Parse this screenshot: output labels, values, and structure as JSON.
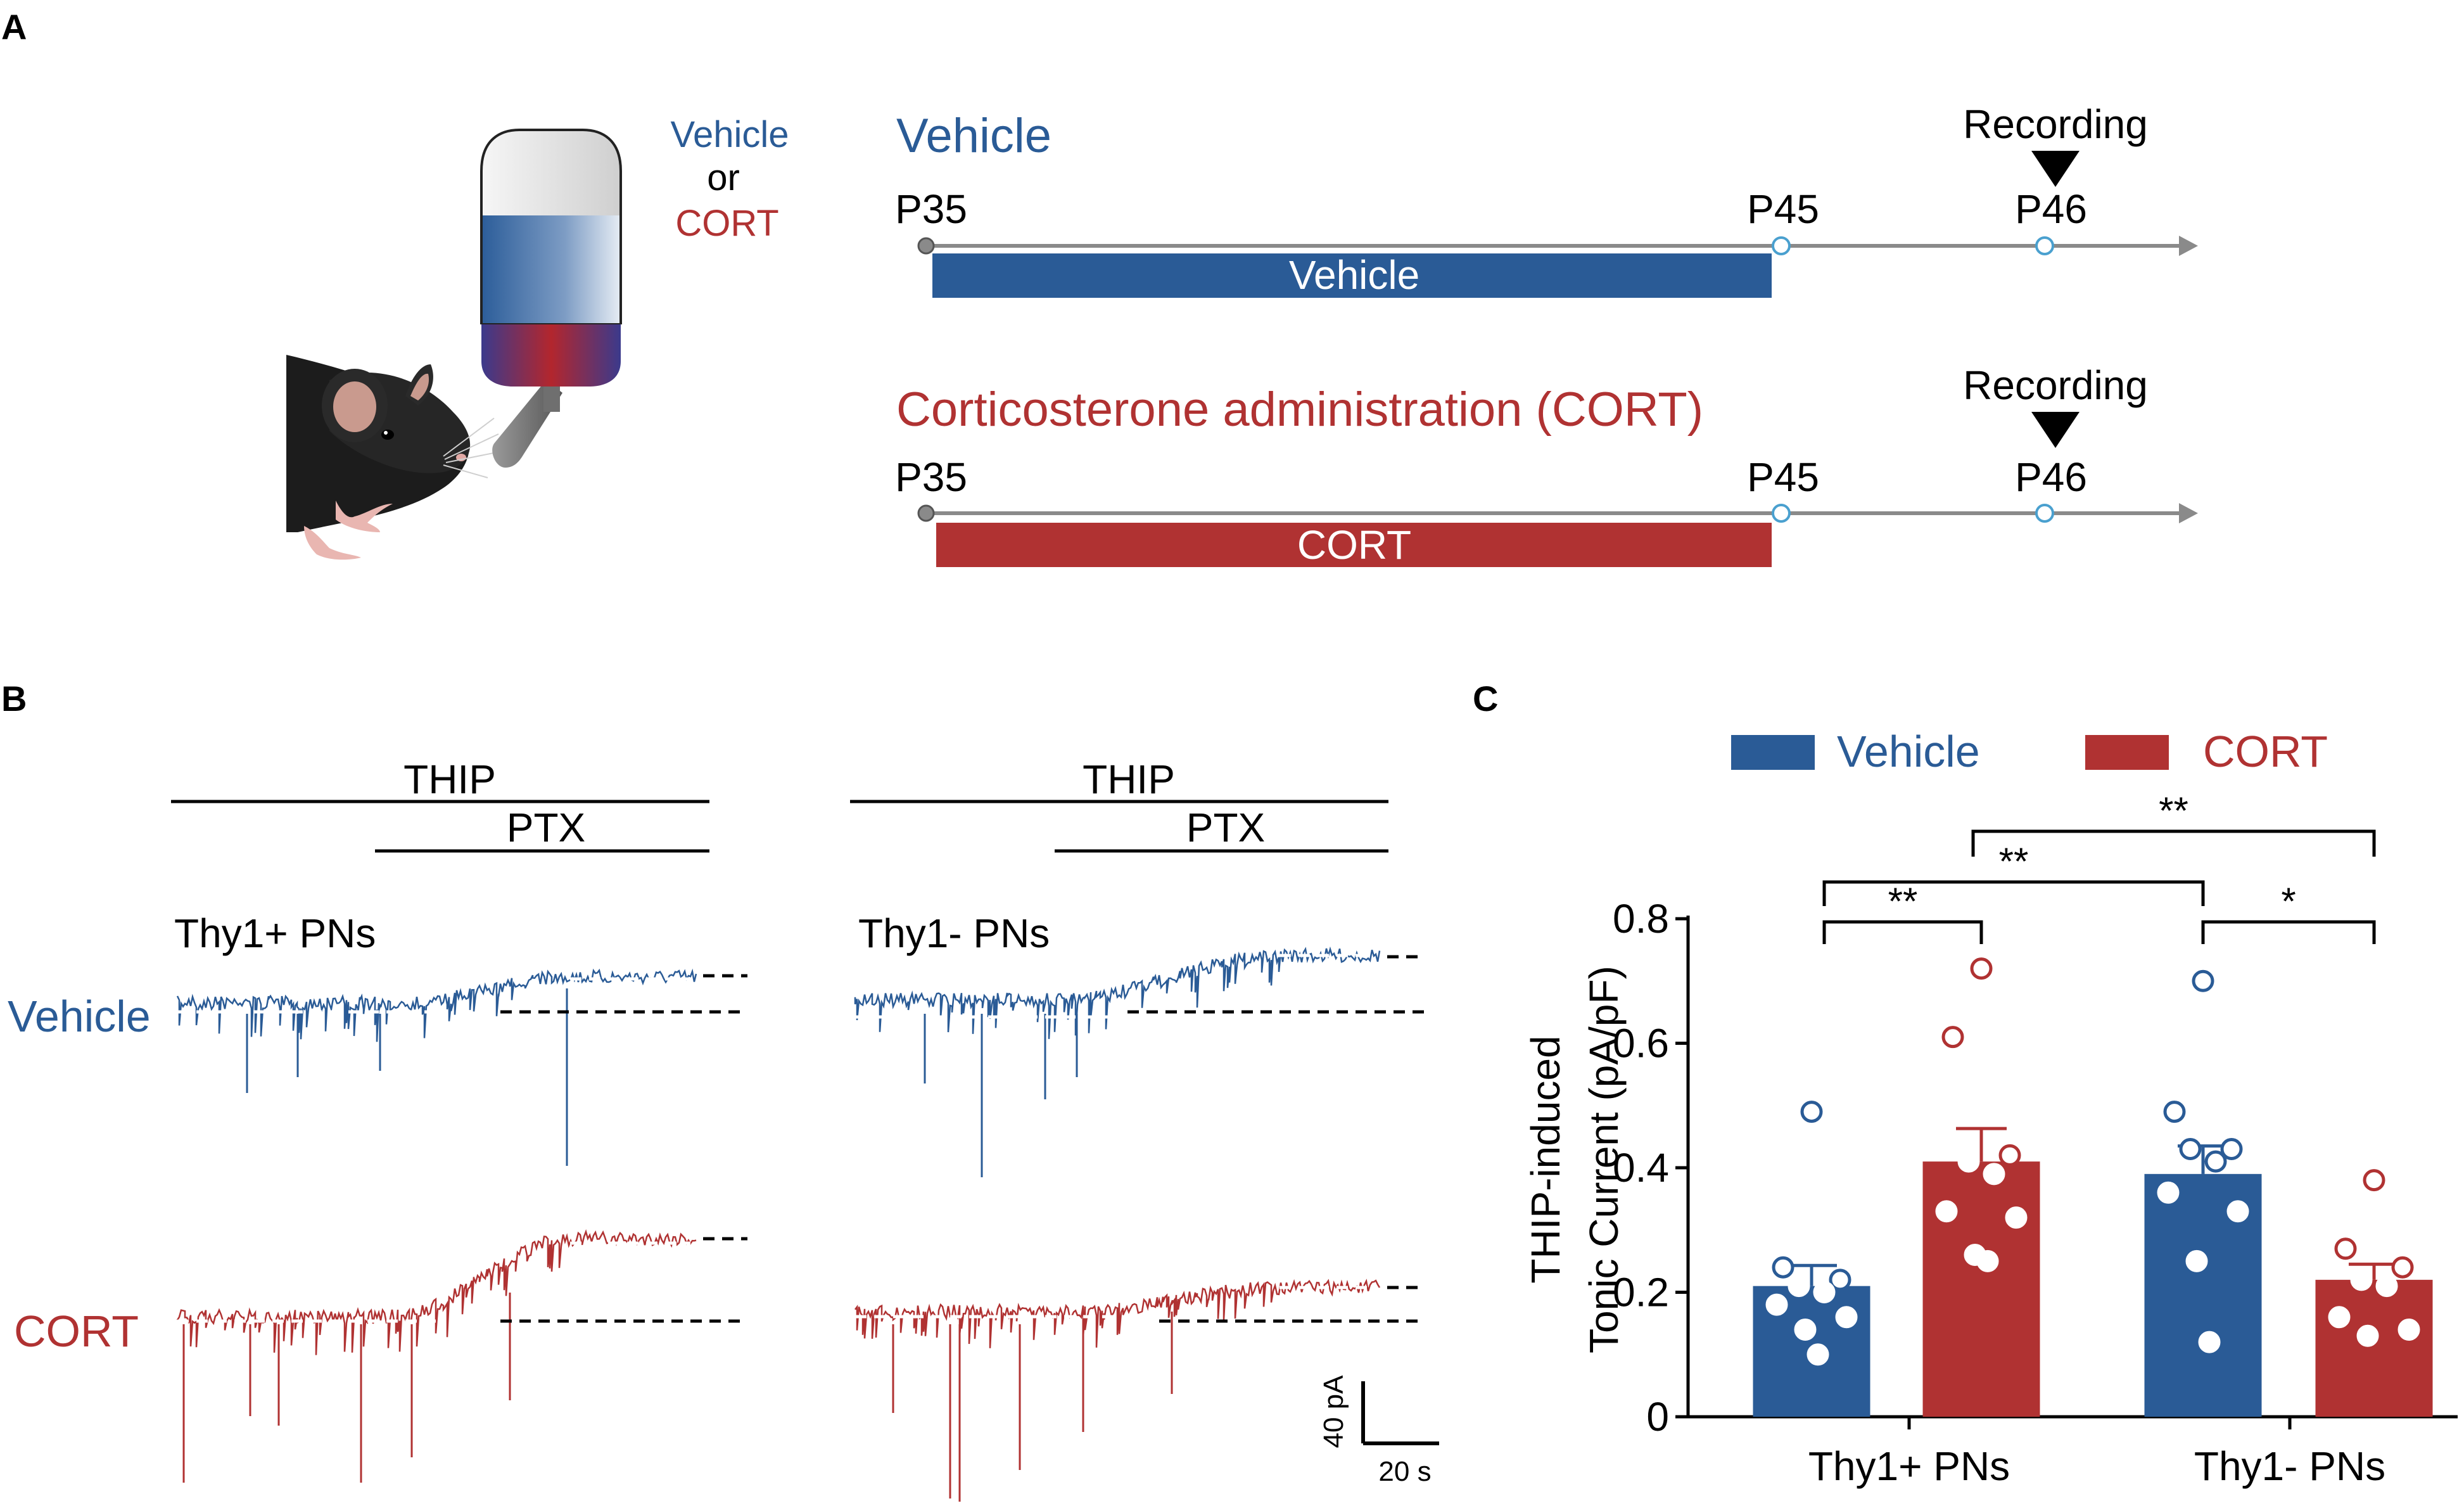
{
  "panels": {
    "a": "A",
    "b": "B",
    "c": "C"
  },
  "colors": {
    "vehicle": "#2a5b96",
    "cort": "#b03232",
    "axis": "#000000",
    "timeline": "#8a8a8a"
  },
  "panel_a": {
    "bottle_legend": {
      "vehicle": "Vehicle",
      "or": "or",
      "cort": "CORT"
    },
    "timelines": [
      {
        "title": "Vehicle",
        "start": "P35",
        "end": "P45",
        "record_day": "P46",
        "recording": "Recording",
        "bar_label": "Vehicle"
      },
      {
        "title": "Corticosterone administration (CORT)",
        "start": "P35",
        "end": "P45",
        "record_day": "P46",
        "recording": "Recording",
        "bar_label": "CORT"
      }
    ]
  },
  "panel_b": {
    "columns": [
      {
        "drug1": "THIP",
        "drug2": "PTX",
        "cell_type": "Thy1+ PNs"
      },
      {
        "drug1": "THIP",
        "drug2": "PTX",
        "cell_type": "Thy1- PNs"
      }
    ],
    "row_labels": [
      "Vehicle",
      "CORT"
    ],
    "scale_y": "40 pA",
    "scale_x": "20 s"
  },
  "chart_data": {
    "type": "bar",
    "title": "",
    "xlabel": "",
    "ylabel_line1": "THIP-induced",
    "ylabel_line2": "Tonic Current (pA/pF)",
    "categories": [
      "Thy1+ PNs",
      "Thy1- PNs"
    ],
    "ylim": [
      0,
      0.8
    ],
    "yticks": [
      0,
      0.2,
      0.4,
      0.6,
      0.8
    ],
    "ytick_labels": [
      "0",
      "0.2",
      "0.4",
      "0.6",
      "0.8"
    ],
    "legend": [
      "Vehicle",
      "CORT"
    ],
    "series": [
      {
        "name": "Vehicle",
        "values": [
          0.21,
          0.39
        ],
        "sem": [
          0.033,
          0.045
        ],
        "points": [
          [
            0.49,
            0.24,
            0.22,
            0.21,
            0.2,
            0.18,
            0.16,
            0.14,
            0.1
          ],
          [
            0.7,
            0.49,
            0.43,
            0.43,
            0.41,
            0.36,
            0.33,
            0.25,
            0.12
          ]
        ]
      },
      {
        "name": "CORT",
        "values": [
          0.41,
          0.22
        ],
        "sem": [
          0.053,
          0.025
        ],
        "points": [
          [
            0.72,
            0.61,
            0.42,
            0.41,
            0.39,
            0.33,
            0.32,
            0.26,
            0.25
          ],
          [
            0.38,
            0.27,
            0.24,
            0.22,
            0.21,
            0.16,
            0.14,
            0.13
          ]
        ]
      }
    ],
    "significance": [
      {
        "between": [
          "Thy1+ PNs Vehicle",
          "Thy1+ PNs CORT"
        ],
        "label": "**"
      },
      {
        "between": [
          "Thy1+ PNs Vehicle",
          "Thy1- PNs Vehicle"
        ],
        "label": "**"
      },
      {
        "between": [
          "Thy1- PNs Vehicle",
          "Thy1- PNs CORT"
        ],
        "label": "*"
      },
      {
        "between": [
          "Thy1+ PNs CORT",
          "Thy1- PNs CORT"
        ],
        "label": "**"
      }
    ]
  }
}
